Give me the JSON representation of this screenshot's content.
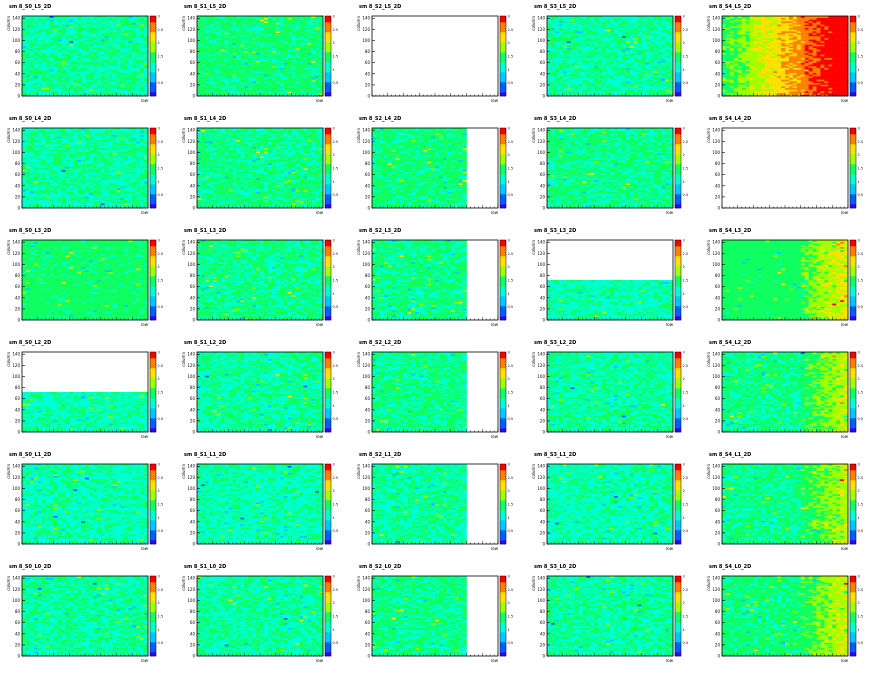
{
  "chart_data": {
    "type": "heatmap",
    "layout": {
      "rows": 6,
      "cols": 5
    },
    "x_axis": {
      "label": "row",
      "range": [
        0,
        64
      ]
    },
    "y_axis": {
      "label": "column",
      "range": [
        0,
        144
      ],
      "ticks": [
        0,
        20,
        40,
        60,
        80,
        100,
        120,
        140
      ]
    },
    "colorbar": {
      "range": [
        0,
        3
      ],
      "ticks": [
        "0.5",
        "1",
        "1.5",
        "2",
        "2.5",
        "3"
      ]
    },
    "colorscale": [
      "#3a00ff",
      "#0060ff",
      "#00c8ff",
      "#00ffd0",
      "#10ff60",
      "#a0ff00",
      "#ffe000",
      "#ff8000",
      "#ff0000"
    ],
    "panels": [
      {
        "title": "sm 8_S0_L5_2D",
        "fill": [
          1,
          1
        ],
        "mean": 1.3
      },
      {
        "title": "sm 8_S1_L5_2D",
        "fill": [
          1,
          1
        ],
        "mean": 1.4
      },
      {
        "title": "sm 8_S2_L5_2D",
        "fill": [
          0,
          0
        ],
        "mean": 0
      },
      {
        "title": "sm 8_S3_L5_2D",
        "fill": [
          1,
          1
        ],
        "mean": 1.3
      },
      {
        "title": "sm 8_S4_L5_2D",
        "fill": [
          1,
          1
        ],
        "mean": 2.0,
        "hot": true
      },
      {
        "title": "sm 8_S0_L4_2D",
        "fill": [
          1,
          1
        ],
        "mean": 1.3
      },
      {
        "title": "sm 8_S1_L4_2D",
        "fill": [
          1,
          1
        ],
        "mean": 1.35
      },
      {
        "title": "sm 8_S2_L4_2D",
        "fill": [
          0.75,
          1
        ],
        "mean": 1.4
      },
      {
        "title": "sm 8_S3_L4_2D",
        "fill": [
          1,
          1
        ],
        "mean": 1.35
      },
      {
        "title": "sm 8_S4_L4_2D",
        "fill": [
          0,
          0
        ],
        "mean": 0
      },
      {
        "title": "sm 8_S0_L3_2D",
        "fill": [
          1,
          1
        ],
        "mean": 1.45
      },
      {
        "title": "sm 8_S1_L3_2D",
        "fill": [
          1,
          1
        ],
        "mean": 1.35
      },
      {
        "title": "sm 8_S2_L3_2D",
        "fill": [
          0.75,
          1
        ],
        "mean": 1.35
      },
      {
        "title": "sm 8_S3_L3_2D",
        "fill": [
          1,
          0.5
        ],
        "mean": 1.25
      },
      {
        "title": "sm 8_S4_L3_2D",
        "fill": [
          1,
          1
        ],
        "mean": 1.5,
        "warm": true
      },
      {
        "title": "sm 8_S0_L2_2D",
        "fill": [
          1,
          0.5
        ],
        "mean": 1.25
      },
      {
        "title": "sm 8_S1_L2_2D",
        "fill": [
          1,
          1
        ],
        "mean": 1.3
      },
      {
        "title": "sm 8_S2_L2_2D",
        "fill": [
          0.75,
          1
        ],
        "mean": 1.35
      },
      {
        "title": "sm 8_S3_L2_2D",
        "fill": [
          1,
          1
        ],
        "mean": 1.3
      },
      {
        "title": "sm 8_S4_L2_2D",
        "fill": [
          1,
          1
        ],
        "mean": 1.35,
        "warm": true
      },
      {
        "title": "sm 8_S0_L1_2D",
        "fill": [
          1,
          1
        ],
        "mean": 1.25
      },
      {
        "title": "sm 8_S1_L1_2D",
        "fill": [
          1,
          1
        ],
        "mean": 1.25
      },
      {
        "title": "sm 8_S2_L1_2D",
        "fill": [
          0.75,
          1
        ],
        "mean": 1.3
      },
      {
        "title": "sm 8_S3_L1_2D",
        "fill": [
          1,
          1
        ],
        "mean": 1.25
      },
      {
        "title": "sm 8_S4_L1_2D",
        "fill": [
          1,
          1
        ],
        "mean": 1.35,
        "warm": true
      },
      {
        "title": "sm 8_S0_L0_2D",
        "fill": [
          1,
          1
        ],
        "mean": 1.3
      },
      {
        "title": "sm 8_S1_L0_2D",
        "fill": [
          1,
          1
        ],
        "mean": 1.3
      },
      {
        "title": "sm 8_S2_L0_2D",
        "fill": [
          0.75,
          1
        ],
        "mean": 1.35
      },
      {
        "title": "sm 8_S3_L0_2D",
        "fill": [
          1,
          1
        ],
        "mean": 1.3
      },
      {
        "title": "sm 8_S4_L0_2D",
        "fill": [
          1,
          1
        ],
        "mean": 1.4,
        "warm": true
      }
    ]
  }
}
